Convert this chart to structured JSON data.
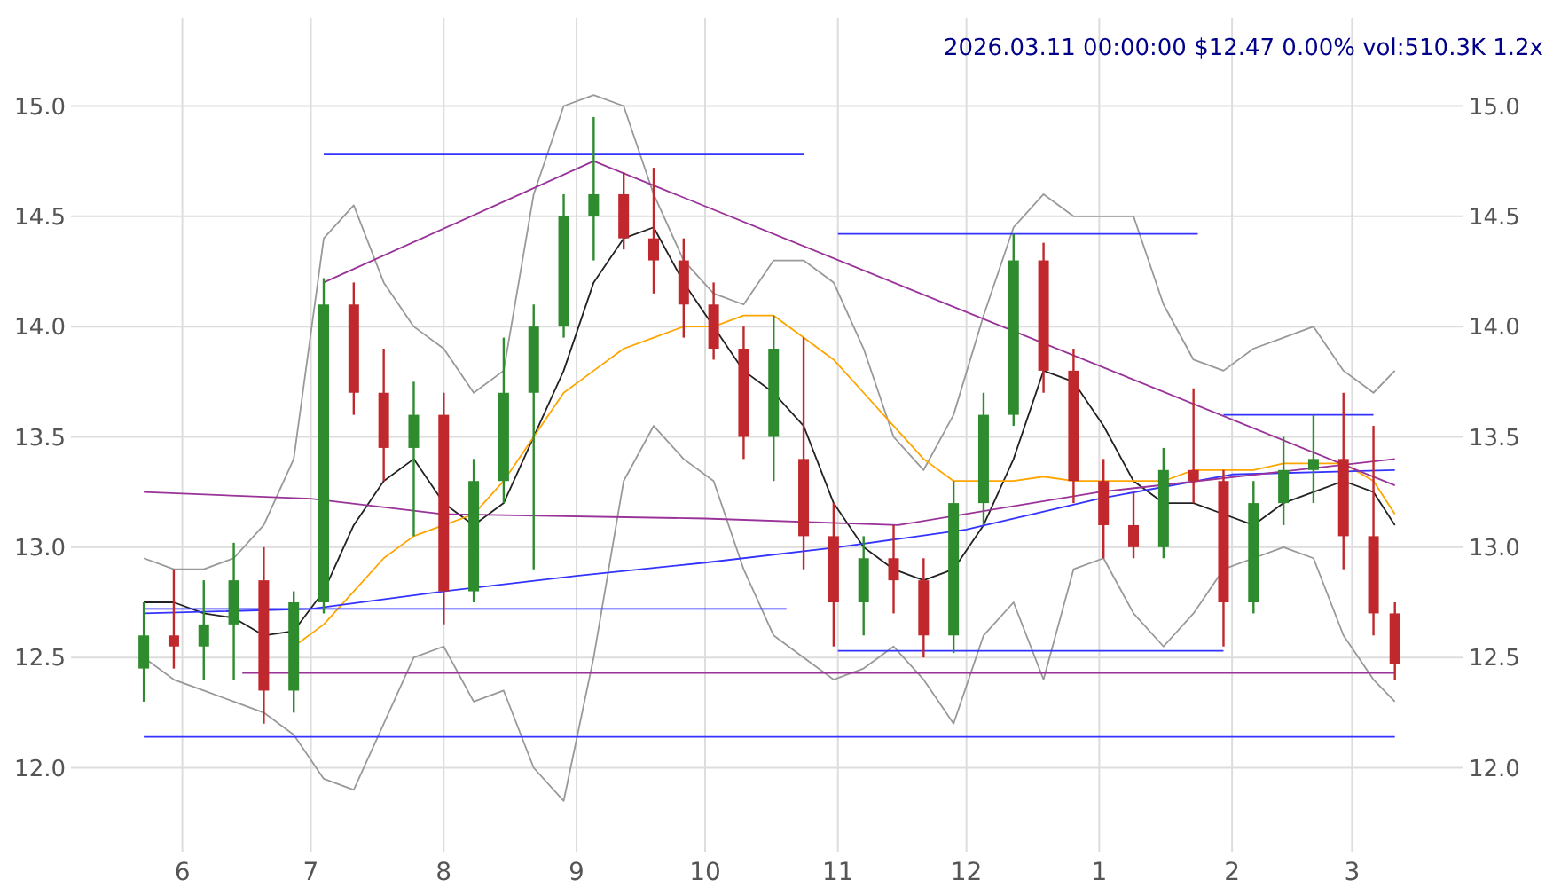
{
  "chart_data": {
    "type": "candlestick",
    "title": "2026.03.11 00:00:00 $12.47 0.00% vol:510.3K 1.2x",
    "xlim": [
      "2025-05-06",
      "2026-03-27"
    ],
    "xticks": [
      {
        "value": "2025-06-01",
        "label": "6"
      },
      {
        "value": "2025-07-01",
        "label": "7"
      },
      {
        "value": "2025-08-01",
        "label": "8"
      },
      {
        "value": "2025-09-01",
        "label": "9"
      },
      {
        "value": "2025-10-01",
        "label": "10"
      },
      {
        "value": "2025-11-01",
        "label": "11"
      },
      {
        "value": "2025-12-01",
        "label": "12"
      },
      {
        "value": "2026-01-01",
        "label": "1"
      },
      {
        "value": "2026-02-01",
        "label": "2"
      },
      {
        "value": "2026-03-01",
        "label": "3"
      }
    ],
    "ylim": [
      11.62,
      15.4
    ],
    "yticks": [
      {
        "value": 12,
        "label": "12.0"
      },
      {
        "value": 12.5,
        "label": "12.5"
      },
      {
        "value": 13,
        "label": "13.0"
      },
      {
        "value": 13.5,
        "label": "13.5"
      },
      {
        "value": 14,
        "label": "14.0"
      },
      {
        "value": 14.5,
        "label": "14.5"
      },
      {
        "value": 15,
        "label": "15.0"
      }
    ],
    "y2lim": [
      11.62,
      15.4
    ],
    "y2ticks": [
      {
        "value": 12,
        "label": "12.0"
      },
      {
        "value": 12.5,
        "label": "12.5"
      },
      {
        "value": 13,
        "label": "13.0"
      },
      {
        "value": 13.5,
        "label": "13.5"
      },
      {
        "value": 14,
        "label": "14.0"
      },
      {
        "value": 14.5,
        "label": "14.5"
      },
      {
        "value": 15,
        "label": "15.0"
      }
    ],
    "grid": true,
    "x": [
      "2025-05-23",
      "2025-05-30",
      "2025-06-06",
      "2025-06-13",
      "2025-06-20",
      "2025-06-27",
      "2025-07-04",
      "2025-07-11",
      "2025-07-18",
      "2025-07-25",
      "2025-08-01",
      "2025-08-08",
      "2025-08-15",
      "2025-08-22",
      "2025-08-29",
      "2025-09-05",
      "2025-09-12",
      "2025-09-19",
      "2025-09-26",
      "2025-10-03",
      "2025-10-10",
      "2025-10-17",
      "2025-10-24",
      "2025-10-31",
      "2025-11-07",
      "2025-11-14",
      "2025-11-21",
      "2025-11-28",
      "2025-12-05",
      "2025-12-12",
      "2025-12-19",
      "2025-12-26",
      "2026-01-02",
      "2026-01-09",
      "2026-01-16",
      "2026-01-23",
      "2026-01-30",
      "2026-02-06",
      "2026-02-13",
      "2026-02-20",
      "2026-02-27",
      "2026-03-06",
      "2026-03-11"
    ],
    "ohlc": [
      [
        12.45,
        12.75,
        12.3,
        12.6
      ],
      [
        12.6,
        12.9,
        12.45,
        12.55
      ],
      [
        12.55,
        12.85,
        12.4,
        12.65
      ],
      [
        12.65,
        13.02,
        12.4,
        12.85
      ],
      [
        12.85,
        13.0,
        12.2,
        12.35
      ],
      [
        12.35,
        12.8,
        12.25,
        12.75
      ],
      [
        12.75,
        14.22,
        12.7,
        14.1
      ],
      [
        14.1,
        14.2,
        13.6,
        13.7
      ],
      [
        13.7,
        13.9,
        13.3,
        13.45
      ],
      [
        13.45,
        13.75,
        13.05,
        13.6
      ],
      [
        13.6,
        13.7,
        12.65,
        12.8
      ],
      [
        12.8,
        13.4,
        12.75,
        13.3
      ],
      [
        13.3,
        13.95,
        13.2,
        13.7
      ],
      [
        13.7,
        14.1,
        12.9,
        14.0
      ],
      [
        14.0,
        14.6,
        13.95,
        14.5
      ],
      [
        14.5,
        14.95,
        14.3,
        14.6
      ],
      [
        14.6,
        14.7,
        14.35,
        14.4
      ],
      [
        14.4,
        14.72,
        14.15,
        14.3
      ],
      [
        14.3,
        14.4,
        13.95,
        14.1
      ],
      [
        14.1,
        14.2,
        13.85,
        13.9
      ],
      [
        13.9,
        14.0,
        13.4,
        13.5
      ],
      [
        13.5,
        14.05,
        13.3,
        13.9
      ],
      [
        13.4,
        13.95,
        12.9,
        13.05
      ],
      [
        13.05,
        13.2,
        12.55,
        12.75
      ],
      [
        12.75,
        13.05,
        12.6,
        12.95
      ],
      [
        12.95,
        13.1,
        12.7,
        12.85
      ],
      [
        12.85,
        12.95,
        12.5,
        12.6
      ],
      [
        12.6,
        13.3,
        12.52,
        13.2
      ],
      [
        13.2,
        13.7,
        13.1,
        13.6
      ],
      [
        13.6,
        14.42,
        13.55,
        14.3
      ],
      [
        14.3,
        14.38,
        13.7,
        13.8
      ],
      [
        13.8,
        13.9,
        13.2,
        13.3
      ],
      [
        13.3,
        13.4,
        12.95,
        13.1
      ],
      [
        13.1,
        13.25,
        12.95,
        13.0
      ],
      [
        13.0,
        13.45,
        12.95,
        13.35
      ],
      [
        13.35,
        13.72,
        13.2,
        13.3
      ],
      [
        13.3,
        13.35,
        12.55,
        12.75
      ],
      [
        12.75,
        13.3,
        12.7,
        13.2
      ],
      [
        13.2,
        13.5,
        13.1,
        13.35
      ],
      [
        13.35,
        13.6,
        13.2,
        13.4
      ],
      [
        13.4,
        13.7,
        12.9,
        13.05
      ],
      [
        13.05,
        13.55,
        12.6,
        12.7
      ],
      [
        12.7,
        12.75,
        12.4,
        12.47
      ]
    ],
    "series": [
      {
        "type": "line",
        "color": "#999999",
        "values": [
          12.95,
          12.9,
          12.9,
          12.95,
          13.1,
          13.4,
          14.4,
          14.55,
          14.2,
          14.0,
          13.9,
          13.7,
          13.8,
          14.6,
          15.0,
          15.05,
          15.0,
          14.6,
          14.3,
          14.15,
          14.1,
          14.3,
          14.3,
          14.2,
          13.9,
          13.5,
          13.35,
          13.6,
          14.05,
          14.45,
          14.6,
          14.5,
          14.5,
          14.5,
          14.1,
          13.85,
          13.8,
          13.9,
          13.95,
          14.0,
          13.8,
          13.7,
          13.8
        ]
      },
      {
        "type": "line",
        "color": "#999999",
        "values": [
          12.5,
          12.4,
          12.35,
          12.3,
          12.25,
          12.15,
          11.95,
          11.9,
          12.2,
          12.5,
          12.55,
          12.3,
          12.35,
          12.0,
          11.85,
          12.5,
          13.3,
          13.55,
          13.4,
          13.3,
          12.9,
          12.6,
          12.5,
          12.4,
          12.45,
          12.55,
          12.4,
          12.2,
          12.6,
          12.75,
          12.4,
          12.9,
          12.95,
          12.7,
          12.55,
          12.7,
          12.9,
          12.95,
          13.0,
          12.95,
          12.6,
          12.4,
          12.3
        ]
      },
      {
        "type": "line",
        "color": "#222222",
        "values": [
          12.75,
          12.75,
          12.7,
          12.68,
          12.6,
          12.62,
          12.8,
          13.1,
          13.3,
          13.4,
          13.2,
          13.1,
          13.2,
          13.5,
          13.8,
          14.2,
          14.4,
          14.45,
          14.2,
          14.0,
          13.8,
          13.7,
          13.55,
          13.2,
          13.0,
          12.9,
          12.85,
          12.9,
          13.1,
          13.4,
          13.8,
          13.75,
          13.55,
          13.3,
          13.2,
          13.2,
          13.15,
          13.1,
          13.2,
          13.25,
          13.3,
          13.25,
          13.1
        ]
      },
      {
        "type": "line",
        "color": "#ffa500",
        "values": [
          null,
          null,
          null,
          null,
          null,
          12.55,
          12.65,
          12.8,
          12.95,
          13.05,
          13.1,
          13.15,
          13.3,
          13.5,
          13.7,
          13.8,
          13.9,
          13.95,
          14.0,
          14.0,
          14.05,
          14.05,
          13.95,
          13.85,
          13.7,
          13.55,
          13.4,
          13.3,
          13.3,
          13.3,
          13.32,
          13.3,
          13.3,
          13.3,
          13.3,
          13.35,
          13.35,
          13.35,
          13.38,
          13.38,
          13.38,
          13.3,
          13.15
        ]
      },
      {
        "type": "line",
        "color": "#3333ff",
        "x": [
          "2025-05-23",
          "2025-07-01",
          "2025-08-01",
          "2025-09-01",
          "2025-10-01",
          "2025-11-01",
          "2025-12-01",
          "2026-01-01",
          "2026-02-01",
          "2026-03-11"
        ],
        "values": [
          12.7,
          12.72,
          12.8,
          12.87,
          12.93,
          13.0,
          13.08,
          13.22,
          13.33,
          13.35
        ]
      },
      {
        "type": "line",
        "color": "#993399",
        "x": [
          "2025-05-23",
          "2025-07-01",
          "2025-08-01",
          "2025-10-01",
          "2025-11-15",
          "2026-01-01",
          "2026-03-11"
        ],
        "values": [
          13.25,
          13.22,
          13.15,
          13.13,
          13.1,
          13.25,
          13.4
        ]
      },
      {
        "type": "line",
        "color": "#993399",
        "x": [
          "2025-07-04",
          "2025-09-05",
          "2026-03-11"
        ],
        "values": [
          14.2,
          14.75,
          13.28
        ]
      },
      {
        "type": "line",
        "color": "#993399",
        "x": [
          "2025-06-15",
          "2026-03-11"
        ],
        "values": [
          12.43,
          12.43
        ]
      },
      {
        "type": "line",
        "color": "#3333ff",
        "x": [
          "2025-05-23",
          "2026-03-11"
        ],
        "values": [
          12.14,
          12.14
        ]
      },
      {
        "type": "line",
        "color": "#3333ff",
        "x": [
          "2025-07-04",
          "2025-10-24"
        ],
        "values": [
          14.78,
          14.78
        ]
      },
      {
        "type": "line",
        "color": "#3333ff",
        "x": [
          "2025-05-23",
          "2025-10-20"
        ],
        "values": [
          12.72,
          12.72
        ]
      },
      {
        "type": "line",
        "color": "#3333ff",
        "x": [
          "2025-11-01",
          "2026-01-24"
        ],
        "values": [
          14.42,
          14.42
        ]
      },
      {
        "type": "line",
        "color": "#3333ff",
        "x": [
          "2025-11-01",
          "2026-01-30"
        ],
        "values": [
          12.53,
          12.53
        ]
      },
      {
        "type": "line",
        "color": "#3333ff",
        "x": [
          "2026-01-30",
          "2026-03-06"
        ],
        "values": [
          13.6,
          13.6
        ]
      }
    ]
  }
}
